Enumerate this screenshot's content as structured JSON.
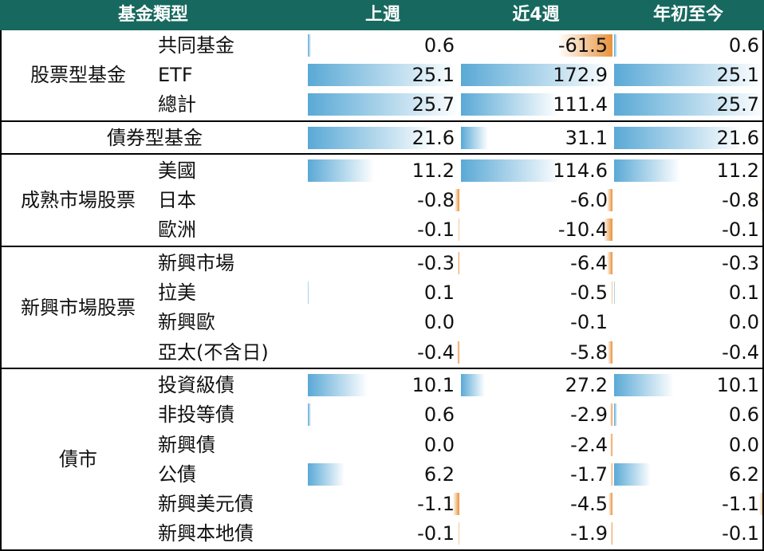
{
  "header": {
    "category": "基金類型",
    "columns": [
      "上週",
      "近4週",
      "年初至今"
    ]
  },
  "colors": {
    "header_bg": "#17695f",
    "positive_bar": "#5aa9d6",
    "negative_bar": "#e8923a"
  },
  "chart_data": {
    "type": "table",
    "columns": [
      "上週",
      "近4週",
      "年初至今"
    ],
    "groups": [
      {
        "label": "股票型基金",
        "rows": [
          {
            "name": "共同基金",
            "values": [
              0.6,
              -61.5,
              0.6
            ]
          },
          {
            "name": "ETF",
            "values": [
              25.1,
              172.9,
              25.1
            ]
          },
          {
            "name": "總計",
            "values": [
              25.7,
              111.4,
              25.7
            ]
          }
        ]
      },
      {
        "label": "債券型基金",
        "rows": [
          {
            "name": "",
            "values": [
              21.6,
              31.1,
              21.6
            ]
          }
        ]
      },
      {
        "label": "成熟市場股票",
        "rows": [
          {
            "name": "美國",
            "values": [
              11.2,
              114.6,
              11.2
            ]
          },
          {
            "name": "日本",
            "values": [
              -0.8,
              -6.0,
              -0.8
            ]
          },
          {
            "name": "歐洲",
            "values": [
              -0.1,
              -10.4,
              -0.1
            ]
          }
        ]
      },
      {
        "label": "新興市場股票",
        "rows": [
          {
            "name": "新興市場",
            "values": [
              -0.3,
              -6.4,
              -0.3
            ]
          },
          {
            "name": "拉美",
            "values": [
              0.1,
              -0.5,
              0.1
            ]
          },
          {
            "name": "新興歐",
            "values": [
              0.0,
              -0.1,
              0.0
            ]
          },
          {
            "name": "亞太(不含日)",
            "values": [
              -0.4,
              -5.8,
              -0.4
            ]
          }
        ]
      },
      {
        "label": "債市",
        "rows": [
          {
            "name": "投資級債",
            "values": [
              10.1,
              27.2,
              10.1
            ]
          },
          {
            "name": "非投等債",
            "values": [
              0.6,
              -2.9,
              0.6
            ]
          },
          {
            "name": "新興債",
            "values": [
              0.0,
              -2.4,
              0.0
            ]
          },
          {
            "name": "公債",
            "values": [
              6.2,
              -1.7,
              6.2
            ]
          },
          {
            "name": "新興美元債",
            "values": [
              -1.1,
              -4.5,
              -1.1
            ]
          },
          {
            "name": "新興本地債",
            "values": [
              -0.1,
              -1.9,
              -0.1
            ]
          }
        ]
      }
    ]
  }
}
